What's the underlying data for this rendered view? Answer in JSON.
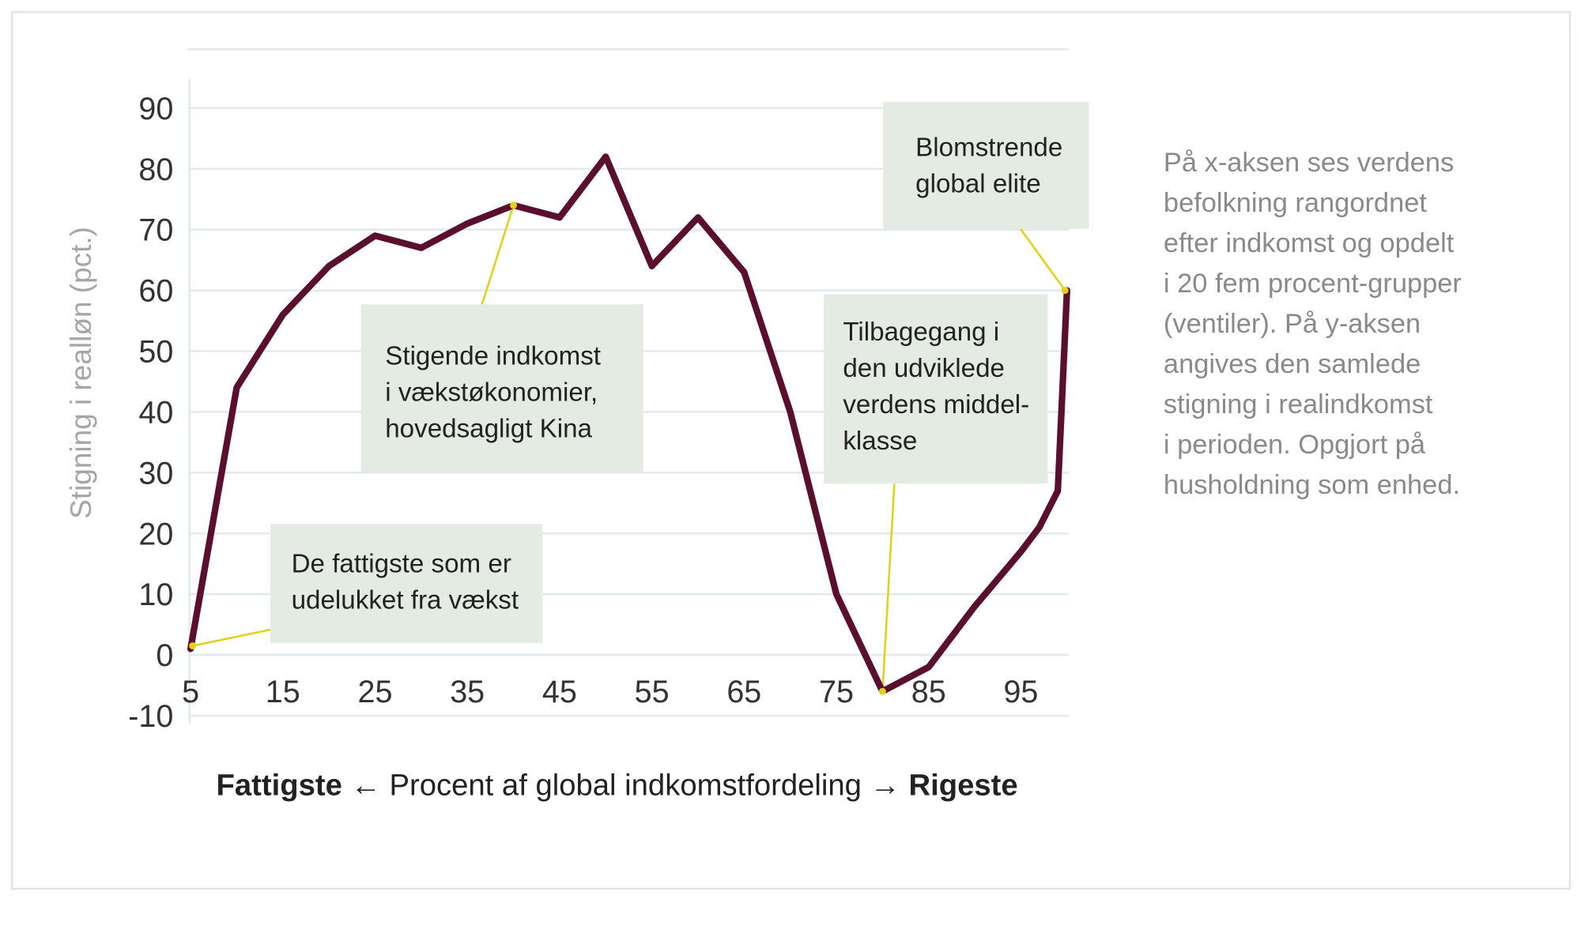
{
  "chart_data": {
    "type": "line",
    "title": "",
    "ylabel": "Stigning i realløn (pct.)",
    "xlabel": {
      "left_bold": "Fattigste",
      "middle": "Procent af global indkomstfordeling",
      "right_bold": "Rigeste",
      "left_arrow": "←",
      "right_arrow": "→"
    },
    "xlim": [
      5,
      100
    ],
    "ylim": [
      -10,
      90
    ],
    "xticks": [
      "5",
      "15",
      "25",
      "35",
      "45",
      "55",
      "65",
      "75",
      "85",
      "95"
    ],
    "yticks": [
      "90",
      "80",
      "70",
      "60",
      "50",
      "40",
      "30",
      "20",
      "10",
      "0",
      "-10"
    ],
    "grid": true,
    "line_color": "#5a0f2e",
    "annotation_color": "#e0d21a",
    "box_color": "#e4ebe2",
    "x": [
      5,
      10,
      15,
      20,
      25,
      30,
      35,
      40,
      45,
      50,
      55,
      60,
      65,
      70,
      75,
      80,
      85,
      90,
      95,
      97,
      99,
      100
    ],
    "values": [
      1,
      44,
      56,
      64,
      69,
      67,
      71,
      74,
      72,
      82,
      64,
      72,
      63,
      40,
      10,
      -6,
      -2,
      8,
      17,
      21,
      27,
      60
    ],
    "annotations": [
      {
        "lines": [
          "De fattigste som er",
          "udelukket fra vækst"
        ],
        "x": 5,
        "y": 1
      },
      {
        "lines": [
          "Stigende indkomst",
          "i vækstøkonomier,",
          "hovedsagligt Kina"
        ],
        "x": 40,
        "y": 74
      },
      {
        "lines": [
          "Tilbagegang i",
          "den udviklede",
          "verdens middel-",
          "klasse"
        ],
        "x": 80,
        "y": -6
      },
      {
        "lines": [
          "Blomstrende",
          "global elite"
        ],
        "x": 100,
        "y": 60
      }
    ]
  },
  "side_note": [
    "På x-aksen ses verdens",
    "befolkning rangordnet",
    "efter indkomst og opdelt",
    "i 20 fem procent-grupper",
    "(ventiler). På y-aksen",
    "angives den samlede",
    "stigning i realindkomst",
    "i perioden. Opgjort på",
    "husholdning som enhed."
  ]
}
